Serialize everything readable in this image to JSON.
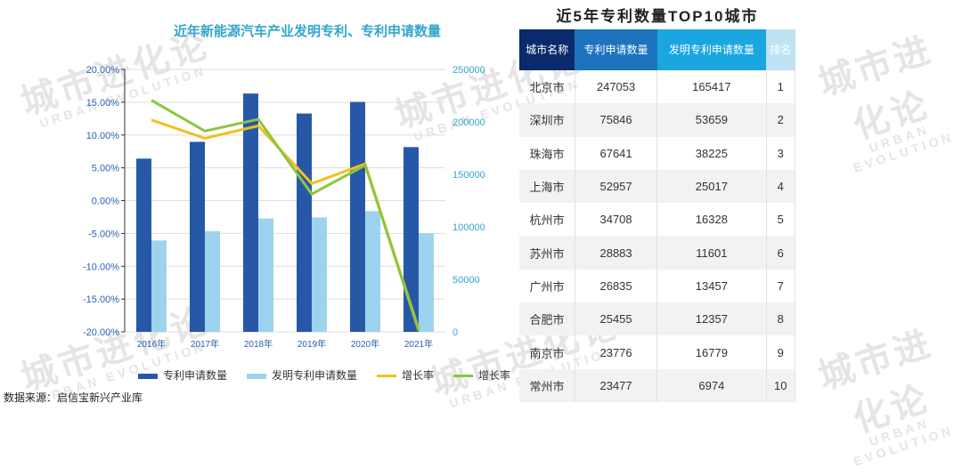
{
  "watermark": {
    "cn": "城市进化论",
    "en": "URBAN EVOLUTION"
  },
  "chart_data": {
    "type": "bar",
    "title": "近年新能源汽车产业发明专利、专利申请数量",
    "categories": [
      "2016年",
      "2017年",
      "2018年",
      "2019年",
      "2020年",
      "2021年"
    ],
    "series": [
      {
        "name": "专利申请数量",
        "type": "bar",
        "axis": "right",
        "color": "#2758a8",
        "values": [
          165000,
          181000,
          227000,
          208000,
          219000,
          176000
        ]
      },
      {
        "name": "发明专利申请数量",
        "type": "bar",
        "axis": "right",
        "color": "#9dd3ef",
        "values": [
          87000,
          96000,
          108000,
          109000,
          115000,
          94000
        ]
      },
      {
        "name": "增长率",
        "type": "line",
        "axis": "left",
        "color": "#f2c01e",
        "values": [
          12.3,
          9.5,
          11.4,
          2.6,
          5.6,
          -19.6
        ]
      },
      {
        "name": "增长率",
        "type": "line",
        "axis": "left",
        "color": "#8cc63f",
        "values": [
          15.3,
          10.6,
          12.4,
          1.0,
          5.4,
          -19.8
        ]
      }
    ],
    "left_axis": {
      "ylim": [
        -20,
        20
      ],
      "ticks": [
        "20.00%",
        "15.00%",
        "10.00%",
        "5.00%",
        "0.00%",
        "-5.00%",
        "-10.00%",
        "-15.00%",
        "-20.00%"
      ]
    },
    "right_axis": {
      "ylim": [
        0,
        250000
      ],
      "ticks": [
        "250000",
        "200000",
        "150000",
        "100000",
        "50000",
        "0"
      ]
    },
    "grid": true,
    "legend": "bottom"
  },
  "source": "数据来源：启信宝新兴产业库",
  "table": {
    "title": "近5年专利数量TOP10城市",
    "headers": [
      "城市名称",
      "专利申请数量",
      "发明专利申请数量",
      "排名"
    ],
    "header_colors": [
      "#0b2a6b",
      "#1e73be",
      "#1aa6e0",
      "#bfe3f3"
    ],
    "rows": [
      [
        "北京市",
        "247053",
        "165417",
        "1"
      ],
      [
        "深圳市",
        "75846",
        "53659",
        "2"
      ],
      [
        "珠海市",
        "67641",
        "38225",
        "3"
      ],
      [
        "上海市",
        "52957",
        "25017",
        "4"
      ],
      [
        "杭州市",
        "34708",
        "16328",
        "5"
      ],
      [
        "苏州市",
        "28883",
        "11601",
        "6"
      ],
      [
        "广州市",
        "26835",
        "13457",
        "7"
      ],
      [
        "合肥市",
        "25455",
        "12357",
        "8"
      ],
      [
        "南京市",
        "23776",
        "16779",
        "9"
      ],
      [
        "常州市",
        "23477",
        "6974",
        "10"
      ]
    ]
  }
}
